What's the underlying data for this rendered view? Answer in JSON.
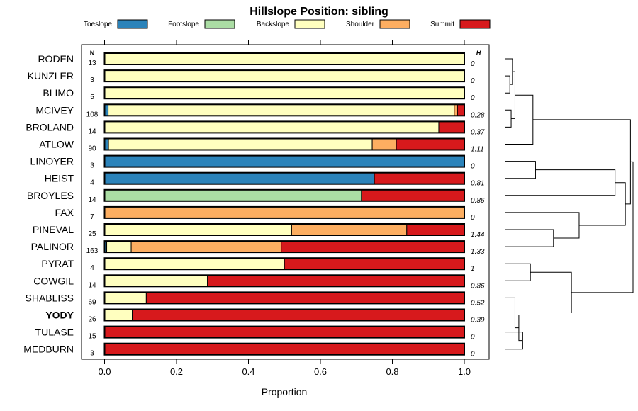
{
  "chart_data": {
    "type": "bar",
    "orientation": "horizontal",
    "stacked": true,
    "title": "Hillslope Position: sibling",
    "xlabel": "Proportion",
    "ylabel": "",
    "xlim": [
      0,
      1
    ],
    "xticks": [
      "0.0",
      "0.2",
      "0.4",
      "0.6",
      "0.8",
      "1.0"
    ],
    "n_header": "N",
    "h_header": "H",
    "legend": [
      {
        "name": "Toeslope",
        "color": "#2b83ba"
      },
      {
        "name": "Footslope",
        "color": "#abdda4"
      },
      {
        "name": "Backslope",
        "color": "#ffffbf"
      },
      {
        "name": "Shoulder",
        "color": "#fdae61"
      },
      {
        "name": "Summit",
        "color": "#d7191c"
      }
    ],
    "rows": [
      {
        "name": "RODEN",
        "bold": false,
        "n": "13",
        "h": "0",
        "values": [
          0,
          0,
          1.0,
          0,
          0
        ]
      },
      {
        "name": "KUNZLER",
        "bold": false,
        "n": "3",
        "h": "0",
        "values": [
          0,
          0,
          1.0,
          0,
          0
        ]
      },
      {
        "name": "BLIMO",
        "bold": false,
        "n": "5",
        "h": "0",
        "values": [
          0,
          0,
          1.0,
          0,
          0
        ]
      },
      {
        "name": "MCIVEY",
        "bold": false,
        "n": "108",
        "h": "0.28",
        "values": [
          0.01,
          0,
          0.962,
          0.009,
          0.019
        ]
      },
      {
        "name": "BROLAND",
        "bold": false,
        "n": "14",
        "h": "0.37",
        "values": [
          0,
          0,
          0.929,
          0,
          0.071
        ]
      },
      {
        "name": "ATLOW",
        "bold": false,
        "n": "90",
        "h": "1.11",
        "values": [
          0.011,
          0,
          0.733,
          0.067,
          0.189
        ]
      },
      {
        "name": "LINOYER",
        "bold": false,
        "n": "3",
        "h": "0",
        "values": [
          1.0,
          0,
          0,
          0,
          0
        ]
      },
      {
        "name": "HEIST",
        "bold": false,
        "n": "4",
        "h": "0.81",
        "values": [
          0.75,
          0,
          0,
          0,
          0.25
        ]
      },
      {
        "name": "BROYLES",
        "bold": false,
        "n": "14",
        "h": "0.86",
        "values": [
          0,
          0.714,
          0,
          0,
          0.286
        ]
      },
      {
        "name": "FAX",
        "bold": false,
        "n": "7",
        "h": "0",
        "values": [
          0,
          0,
          0,
          1.0,
          0
        ]
      },
      {
        "name": "PINEVAL",
        "bold": false,
        "n": "25",
        "h": "1.44",
        "values": [
          0,
          0,
          0.52,
          0.32,
          0.16
        ]
      },
      {
        "name": "PALINOR",
        "bold": false,
        "n": "163",
        "h": "1.33",
        "values": [
          0.006,
          0,
          0.068,
          0.417,
          0.509
        ]
      },
      {
        "name": "PYRAT",
        "bold": false,
        "n": "4",
        "h": "1",
        "values": [
          0,
          0,
          0.5,
          0,
          0.5
        ]
      },
      {
        "name": "COWGIL",
        "bold": false,
        "n": "14",
        "h": "0.86",
        "values": [
          0,
          0,
          0.286,
          0,
          0.714
        ]
      },
      {
        "name": "SHABLISS",
        "bold": false,
        "n": "69",
        "h": "0.52",
        "values": [
          0,
          0,
          0.116,
          0,
          0.884
        ]
      },
      {
        "name": "YODY",
        "bold": true,
        "n": "26",
        "h": "0.39",
        "values": [
          0,
          0,
          0.077,
          0,
          0.923
        ]
      },
      {
        "name": "TULASE",
        "bold": false,
        "n": "15",
        "h": "0",
        "values": [
          0,
          0,
          0,
          0,
          1.0
        ]
      },
      {
        "name": "MEDBURN",
        "bold": false,
        "n": "3",
        "h": "0",
        "values": [
          0,
          0,
          0,
          0,
          1.0
        ]
      }
    ],
    "dendrogram": {
      "type": "cluster-tree",
      "leaves": [
        "RODEN",
        "KUNZLER",
        "BLIMO",
        "MCIVEY",
        "BROLAND",
        "ATLOW",
        "LINOYER",
        "HEIST",
        "BROYLES",
        "FAX",
        "PINEVAL",
        "PALINOR",
        "PYRAT",
        "COWGIL",
        "SHABLISS",
        "YODY",
        "TULASE",
        "MEDBURN"
      ],
      "merges": [
        {
          "children": [
            "L1",
            "L2"
          ],
          "height": 0.04
        },
        {
          "children": [
            "L0",
            "M0"
          ],
          "height": 0.06
        },
        {
          "children": [
            "L3",
            "L4"
          ],
          "height": 0.05
        },
        {
          "children": [
            "M1",
            "M2"
          ],
          "height": 0.08
        },
        {
          "children": [
            "M3",
            "L5"
          ],
          "height": 0.22
        },
        {
          "children": [
            "L6",
            "L7"
          ],
          "height": 0.24
        },
        {
          "children": [
            "M5",
            "L8"
          ],
          "height": 0.86
        },
        {
          "children": [
            "L10",
            "L11"
          ],
          "height": 0.38
        },
        {
          "children": [
            "L9",
            "M7"
          ],
          "height": 0.58
        },
        {
          "children": [
            "M6",
            "M8"
          ],
          "height": 0.94
        },
        {
          "children": [
            "M4",
            "M9"
          ],
          "height": 0.98
        },
        {
          "children": [
            "L12",
            "L13"
          ],
          "height": 0.2
        },
        {
          "children": [
            "L16",
            "L17"
          ],
          "height": 0.14
        },
        {
          "children": [
            "L15",
            "M12"
          ],
          "height": 0.11
        },
        {
          "children": [
            "L14",
            "M13"
          ],
          "height": 0.08
        },
        {
          "children": [
            "M11",
            "M14"
          ],
          "height": 0.52
        },
        {
          "children": [
            "M10",
            "M15"
          ],
          "height": 1.0
        }
      ]
    }
  }
}
